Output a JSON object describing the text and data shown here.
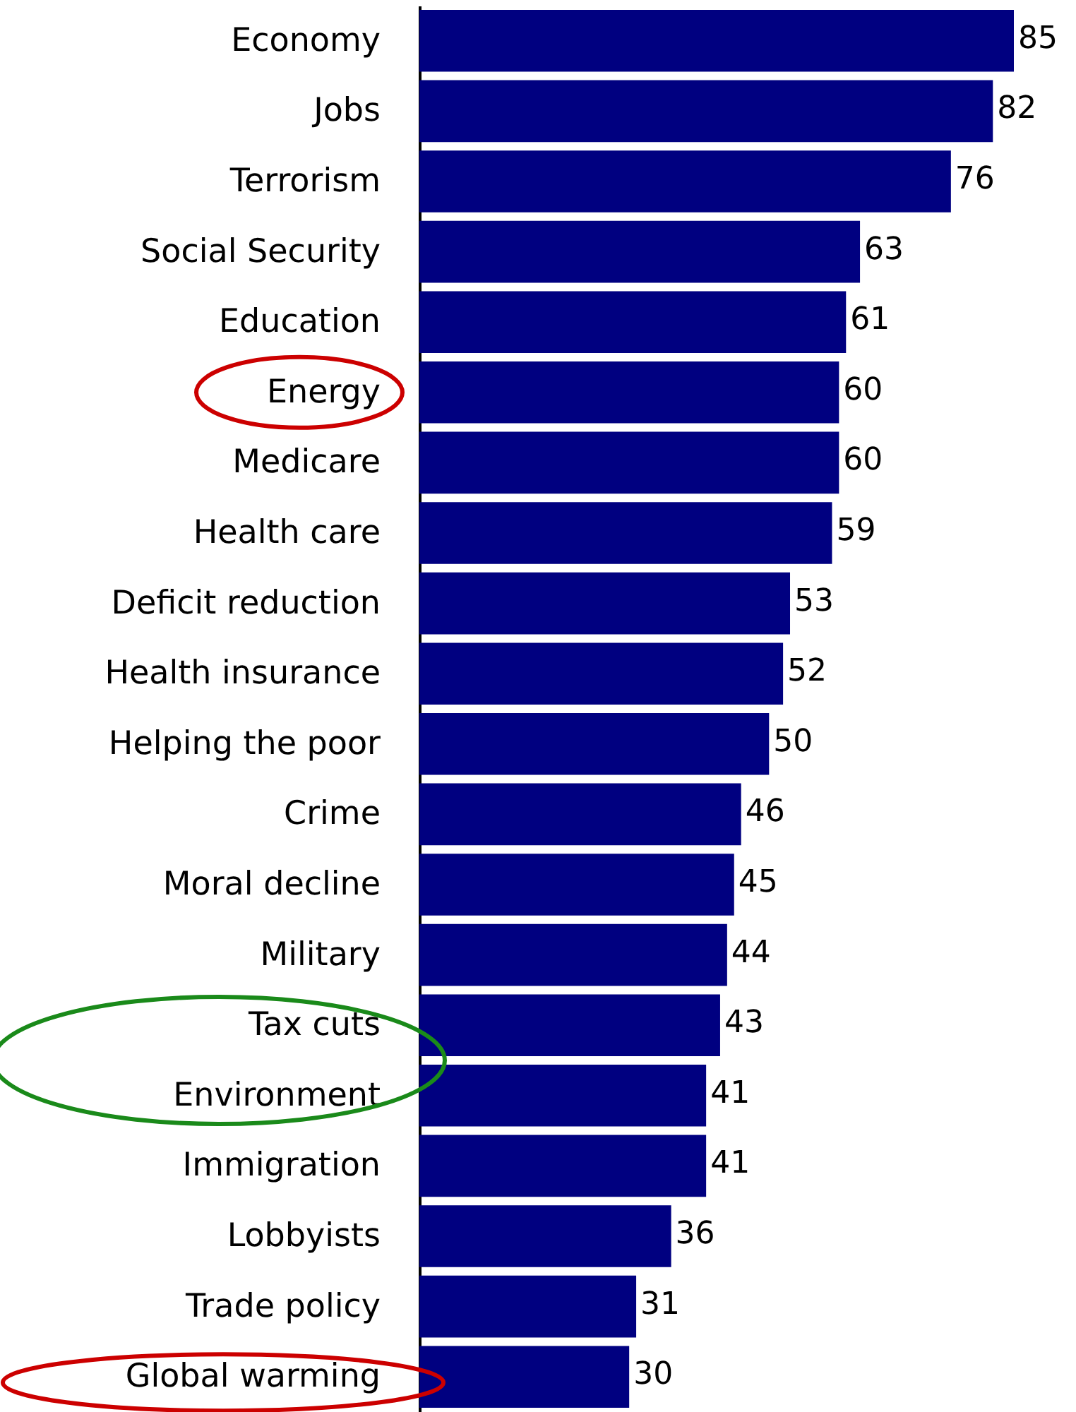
{
  "chart_data": {
    "type": "bar",
    "orientation": "horizontal",
    "categories": [
      "Economy",
      "Jobs",
      "Terrorism",
      "Social Security",
      "Education",
      "Energy",
      "Medicare",
      "Health care",
      "Deficit reduction",
      "Health insurance",
      "Helping the poor",
      "Crime",
      "Moral decline",
      "Military",
      "Tax cuts",
      "Environment",
      "Immigration",
      "Lobbyists",
      "Trade policy",
      "Global warming"
    ],
    "values": [
      85,
      82,
      76,
      63,
      61,
      60,
      60,
      59,
      53,
      52,
      50,
      46,
      45,
      44,
      43,
      41,
      41,
      36,
      31,
      30
    ],
    "color": "#000080",
    "data_labels": true,
    "tick_labels": "y"
  }
}
